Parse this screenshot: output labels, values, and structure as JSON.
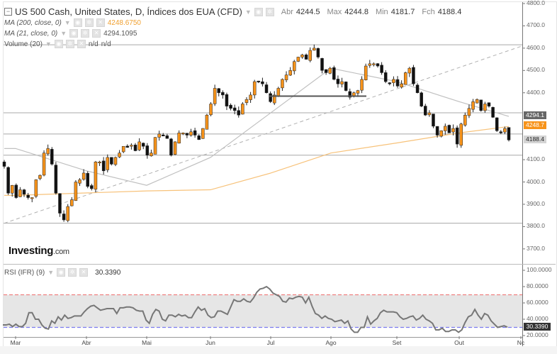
{
  "header": {
    "instrument_title": "US 500 Cash, United States, D, Índices dos EUA (CFD)",
    "ohlc": [
      {
        "label": "Abr",
        "value": "4244.5"
      },
      {
        "label": "Max",
        "value": "4244.8"
      },
      {
        "label": "Min",
        "value": "4181.7"
      },
      {
        "label": "Fch",
        "value": "4188.4"
      }
    ]
  },
  "indicators": {
    "ma200": {
      "label": "MA (200, close, 0)",
      "value": "4248.6750",
      "color": "#f0a030"
    },
    "ma21": {
      "label": "MA (21, close, 0)",
      "value": "4294.1095",
      "color": "#b0b0b0"
    },
    "volume": {
      "label": "Volume (20)",
      "value1": "n/d",
      "value2": "n/d"
    },
    "rsi": {
      "label": "RSI (IFR) (9)",
      "value": "30.3390"
    }
  },
  "logo": {
    "brand": "Investing",
    "suffix": ".com"
  },
  "price_tags": {
    "ma21": "4294.1",
    "ma200": "4248.7",
    "close": "4188.4"
  },
  "colors": {
    "bull": "#f7931a",
    "bear": "#111111",
    "ma200": "#f7c27a",
    "ma21": "#c0c0c0",
    "rsi_line": "#777777",
    "overbought": "#f08080",
    "oversold": "#7b7bf0",
    "rsi_band": "#e6e6e6",
    "tag_ma21": "#666666",
    "tag_ma200": "#f7931a",
    "tag_close": "#d0d0d0"
  },
  "chart_data": [
    {
      "type": "candlestick",
      "title": "US 500 Cash, United States, D, Índices dos EUA (CFD)",
      "xlabel": "",
      "ylabel": "",
      "x_ticks": [
        "Mar",
        "Abr",
        "Mai",
        "Jun",
        "Jul",
        "Ago",
        "Set",
        "Out",
        "Nc"
      ],
      "y_ticks": [
        "4800.0",
        "4700.0",
        "4600.0",
        "4500.0",
        "4400.0",
        "4100.0",
        "4000.0",
        "3900.0",
        "3800.0",
        "3700.0"
      ],
      "ylim": [
        3650,
        4810
      ],
      "last": {
        "open": 4244.5,
        "high": 4244.8,
        "low": 4181.7,
        "close": 4188.4
      },
      "series": [
        {
          "name": "Close (approx.)",
          "values": [
            4070,
            3950,
            3985,
            3930,
            3965,
            3945,
            3930,
            3930,
            4010,
            4030,
            4130,
            4150,
            4080,
            3950,
            3860,
            3830,
            3890,
            3920,
            4000,
            4010,
            4040,
            3980,
            3970,
            4090,
            4090,
            4050,
            4110,
            4080,
            4110,
            4130,
            4160,
            4155,
            4165,
            4140,
            4180,
            4160,
            4120,
            4130,
            4200,
            4215,
            4210,
            4195,
            4120,
            4180,
            4220,
            4220,
            4210,
            4225,
            4210,
            4190,
            4240,
            4300,
            4350,
            4420,
            4400,
            4390,
            4340,
            4330,
            4320,
            4300,
            4350,
            4370,
            4390,
            4450,
            4450,
            4440,
            4400,
            4360,
            4390,
            4420,
            4460,
            4480,
            4500,
            4540,
            4560,
            4570,
            4550,
            4590,
            4600,
            4560,
            4500,
            4490,
            4510,
            4460,
            4440,
            4450,
            4410,
            4380,
            4400,
            4410,
            4460,
            4520,
            4530,
            4530,
            4520,
            4490,
            4450,
            4440,
            4460,
            4430,
            4440,
            4490,
            4510,
            4440,
            4400,
            4340,
            4300,
            4310,
            4250,
            4210,
            4230,
            4250,
            4220,
            4240,
            4170,
            4260,
            4300,
            4330,
            4360,
            4370,
            4320,
            4350,
            4340,
            4290,
            4230,
            4220,
            4240,
            4188.4
          ]
        },
        {
          "name": "MA (200, close, 0)",
          "values_at_ticks": {
            "Mar": 3940,
            "Mai": 3960,
            "Jun": 3965,
            "Jul": 4040,
            "Ago": 4130,
            "Set": 4175,
            "Out": 4220,
            "end": 4248.7
          }
        },
        {
          "name": "MA (21, close, 0)",
          "values_at_ticks": {
            "Mar": 4150,
            "Abr": 4050,
            "Mai": 3985,
            "Jun": 4110,
            "Jul": 4310,
            "Ago": 4510,
            "Set": 4450,
            "Out": 4360,
            "end": 4294.1
          }
        }
      ],
      "horizontal_lines": [
        4615,
        4310,
        4215,
        4120,
        3815
      ],
      "support_line": {
        "from": {
          "x": "Jul",
          "y": 4385
        },
        "to": {
          "x": "Ago",
          "y": 4385
        }
      },
      "trendline": {
        "style": "dashed",
        "from": {
          "x": "start",
          "y": 3815
        },
        "to": {
          "x": "end",
          "y": 4610
        }
      },
      "grid": false
    },
    {
      "type": "line",
      "title": "RSI (IFR) (9)",
      "x_ticks": [
        "Mar",
        "Abr",
        "Mai",
        "Jun",
        "Jul",
        "Ago",
        "Set",
        "Out",
        "Nc"
      ],
      "y_ticks": [
        "100.0000",
        "80.0000",
        "60.0000",
        "40.0000",
        "20.0000"
      ],
      "ylim": [
        15,
        100
      ],
      "levels": {
        "overbought": 70,
        "oversold": 30
      },
      "last_value": 30.339,
      "values": [
        33,
        33,
        34,
        31,
        34,
        31,
        31,
        35,
        48,
        48,
        40,
        40,
        33,
        29,
        28,
        38,
        35,
        43,
        39,
        45,
        41,
        42,
        44,
        44,
        44,
        49,
        53,
        56,
        57,
        54,
        51,
        52,
        53,
        53,
        53,
        47,
        54,
        54,
        55,
        55,
        54,
        51,
        50,
        50,
        39,
        35,
        46,
        52,
        50,
        40,
        38,
        45,
        45,
        43,
        46,
        44,
        45,
        42,
        42,
        49,
        55,
        51,
        53,
        45,
        42,
        43,
        50,
        50,
        48,
        46,
        55,
        64,
        62,
        62,
        65,
        62,
        61,
        66,
        73,
        77,
        78,
        80,
        77,
        72,
        70,
        68,
        62,
        61,
        66,
        65,
        67,
        68,
        67,
        60,
        67,
        56,
        47,
        45,
        41,
        44,
        41,
        40,
        37,
        38,
        39,
        35,
        38,
        28,
        24,
        24,
        30,
        30,
        43,
        34,
        38,
        41,
        48,
        51,
        49,
        49,
        49,
        48,
        43,
        40,
        41,
        43,
        44,
        39,
        41,
        45,
        40,
        38,
        35,
        27,
        27,
        29,
        25,
        25,
        27,
        27,
        24,
        27,
        36,
        43,
        45,
        52,
        45,
        40,
        47,
        45,
        38,
        34,
        30,
        31,
        32,
        30.3
      ]
    }
  ]
}
